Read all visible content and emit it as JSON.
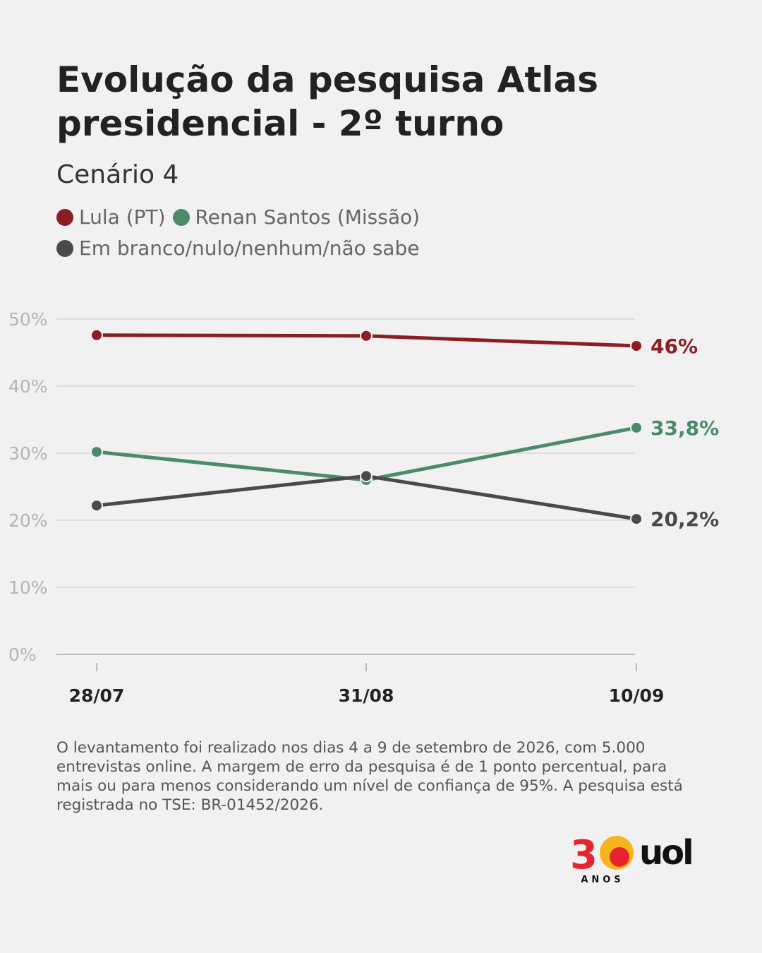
{
  "header": {
    "title": "Evolução da pesquisa Atlas presidencial - 2º turno",
    "subtitle": "Cenário 4"
  },
  "colors": {
    "background": "#f1f1f1",
    "lula": "#8b1e24",
    "renan": "#4c8b6a",
    "blank": "#4a4a4a",
    "grid": "#c8c8c8",
    "tick_text": "#b4b4b4"
  },
  "chart_data": {
    "type": "line",
    "x": [
      "28/07",
      "31/08",
      "10/09"
    ],
    "ylim": [
      0,
      50
    ],
    "yticks": [
      0,
      10,
      20,
      30,
      40,
      50
    ],
    "ytick_labels": [
      "0%",
      "10%",
      "20%",
      "30%",
      "40%",
      "50%"
    ],
    "grid": true,
    "legend_position": "top-left",
    "series": [
      {
        "name": "Lula (PT)",
        "color": "#8b1e24",
        "values": [
          47.6,
          47.5,
          46.0
        ],
        "end_label": "46%"
      },
      {
        "name": "Renan Santos (Missão)",
        "color": "#4c8b6a",
        "values": [
          30.2,
          26.0,
          33.8
        ],
        "end_label": "33,8%"
      },
      {
        "name": "Em branco/nulo/nenhum/não sabe",
        "color": "#4a4a4a",
        "values": [
          22.2,
          26.6,
          20.2
        ],
        "end_label": "20,2%"
      }
    ]
  },
  "footer": {
    "note": "O levantamento foi realizado nos dias 4 a 9 de setembro de 2026, com 5.000 entrevistas online. A margem de erro da pesquisa é de 1 ponto percentual, para mais ou para menos considerando um nível de confiança de 95%. A pesquisa está registrada no TSE: BR-01452/2026."
  },
  "logo": {
    "number": "30",
    "anos": "ANOS",
    "brand": "uol"
  }
}
